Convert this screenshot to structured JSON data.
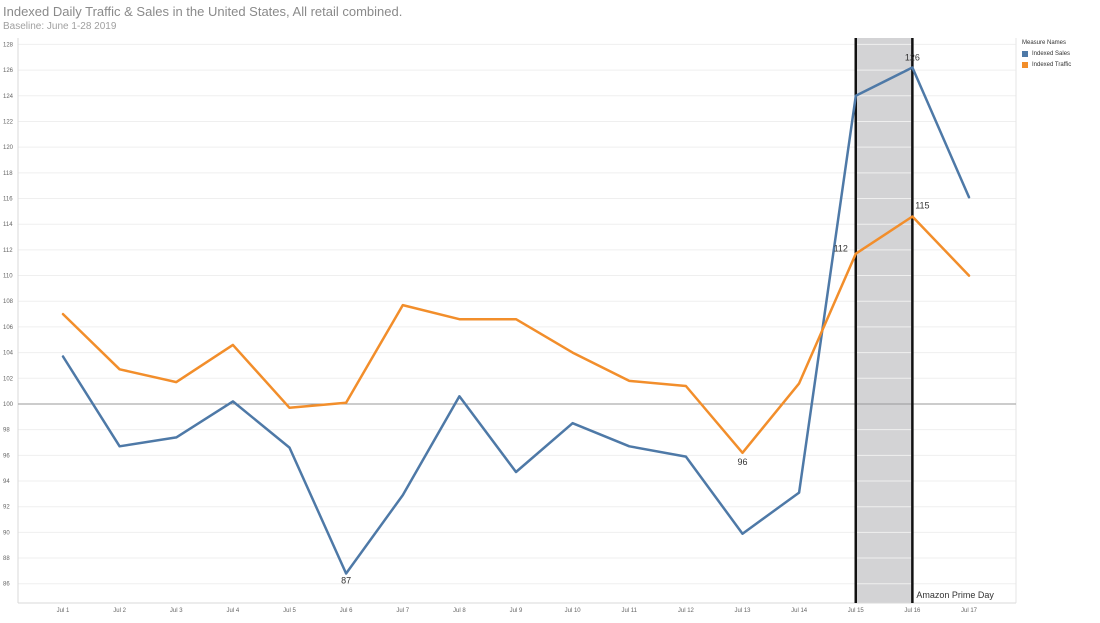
{
  "chart_data": {
    "type": "line",
    "title": "Indexed Daily Traffic & Sales in the United States, All retail combined.",
    "subtitle": "Baseline: June 1-28 2019",
    "categories": [
      "Jul 1",
      "Jul 2",
      "Jul 3",
      "Jul 4",
      "Jul 5",
      "Jul 6",
      "Jul 7",
      "Jul 8",
      "Jul 9",
      "Jul 10",
      "Jul 11",
      "Jul 12",
      "Jul 13",
      "Jul 14",
      "Jul 15",
      "Jul 16",
      "Jul 17"
    ],
    "series": [
      {
        "name": "Indexed Sales",
        "color": "#4e79a7",
        "values": [
          103.7,
          96.7,
          97.4,
          100.2,
          96.6,
          86.8,
          92.9,
          100.6,
          94.7,
          98.5,
          96.7,
          95.9,
          89.9,
          93.1,
          124.0,
          126.2,
          116.1
        ]
      },
      {
        "name": "Indexed Traffic",
        "color": "#f28e2b",
        "values": [
          107.0,
          102.7,
          101.7,
          104.6,
          99.7,
          100.1,
          107.7,
          106.6,
          106.6,
          104.0,
          101.8,
          101.4,
          96.2,
          101.6,
          111.7,
          114.6,
          110.0
        ]
      }
    ],
    "data_labels": [
      {
        "text": "87",
        "series": 0,
        "index": 5
      },
      {
        "text": "126",
        "series": 0,
        "index": 15
      },
      {
        "text": "96",
        "series": 1,
        "index": 12
      },
      {
        "text": "112",
        "series": 1,
        "index": 14
      },
      {
        "text": "115",
        "series": 1,
        "index": 15
      }
    ],
    "y_ticks": [
      86,
      88,
      90,
      92,
      94,
      96,
      98,
      100,
      102,
      104,
      106,
      108,
      110,
      112,
      114,
      116,
      118,
      120,
      122,
      124,
      126,
      128
    ],
    "ylim": [
      84.5,
      128.5
    ],
    "reference_line": 100,
    "highlight": {
      "from": "Jul 15",
      "to": "Jul 16",
      "label": "Amazon Prime Day"
    },
    "legend": {
      "title": "Measure Names",
      "position": "top-right"
    },
    "grid": true
  }
}
